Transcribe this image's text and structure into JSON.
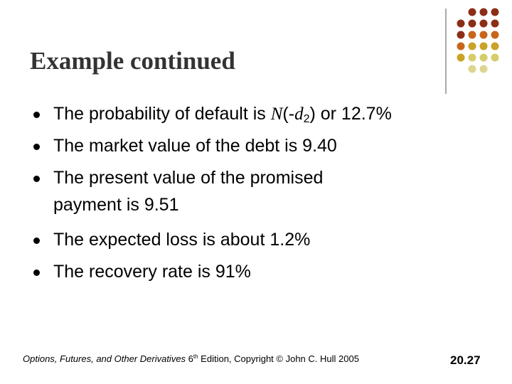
{
  "title": "Example continued",
  "bullets": [
    [
      "The probability of default is ",
      "N",
      "(-",
      "d",
      "2",
      ") or 12.7%"
    ],
    "The market value of the debt is 9.40",
    [
      "The present value of the promised",
      "payment is 9.51"
    ],
    "The expected loss is about 1.2%",
    "The recovery rate is 91%"
  ],
  "footer": [
    "Options, Futures, and Other Derivatives",
    " 6",
    "th",
    " Edition, Copyright © John C. Hull 2005"
  ],
  "page_number": "20.27"
}
